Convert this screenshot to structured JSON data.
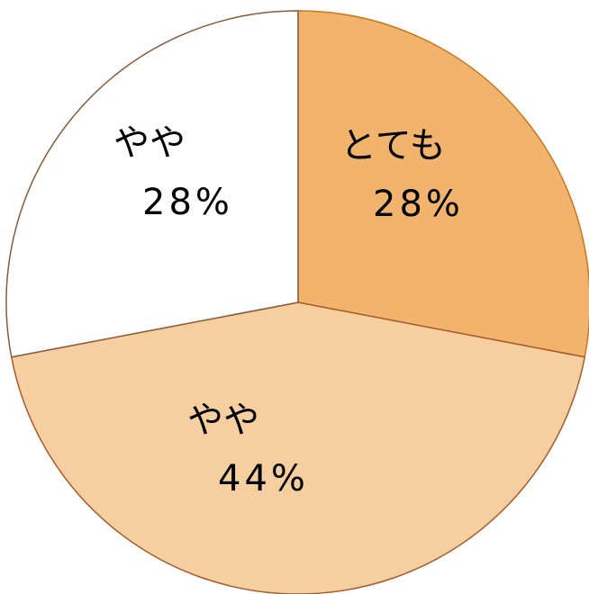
{
  "chart_data": {
    "type": "pie",
    "start_angle_deg": 0,
    "direction": "clockwise",
    "slices": [
      {
        "label": "とても",
        "value": 28,
        "value_label": "28%",
        "color": "#F2B36C",
        "stroke": "#C8781E"
      },
      {
        "label": "やや",
        "value": 44,
        "value_label": "44%",
        "color": "#F6CFA0",
        "stroke": "#A85A2A"
      },
      {
        "label": "やや",
        "value": 28,
        "value_label": "28%",
        "color": "#FFFFFF",
        "stroke": "#8B5A3A"
      }
    ]
  }
}
